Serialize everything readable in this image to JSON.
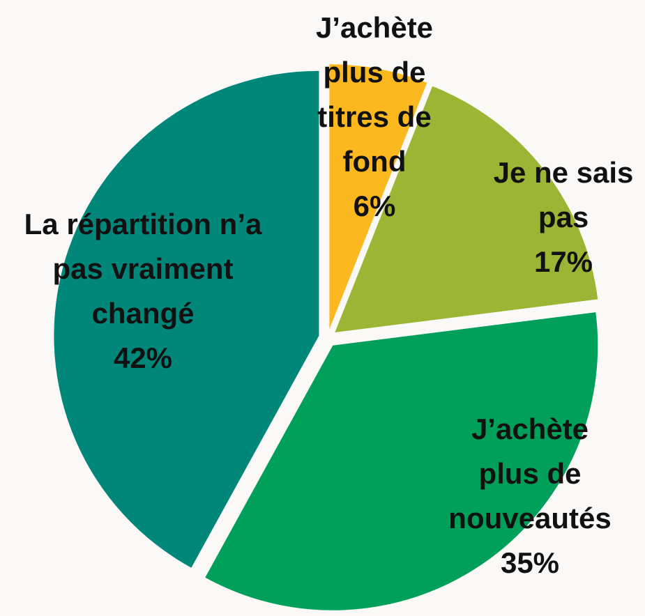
{
  "chart_data": {
    "type": "pie",
    "categories": [
      "J’achète plus de titres de fond",
      "Je ne sais pas",
      "J’achète plus de nouveautés",
      "La répartition n’a pas vraiment changé"
    ],
    "values": [
      6,
      17,
      35,
      42
    ],
    "value_labels": [
      "6%",
      "17%",
      "35%",
      "42%"
    ],
    "colors": [
      "#fbb81f",
      "#9db535",
      "#00a05a",
      "#00877a"
    ]
  }
}
